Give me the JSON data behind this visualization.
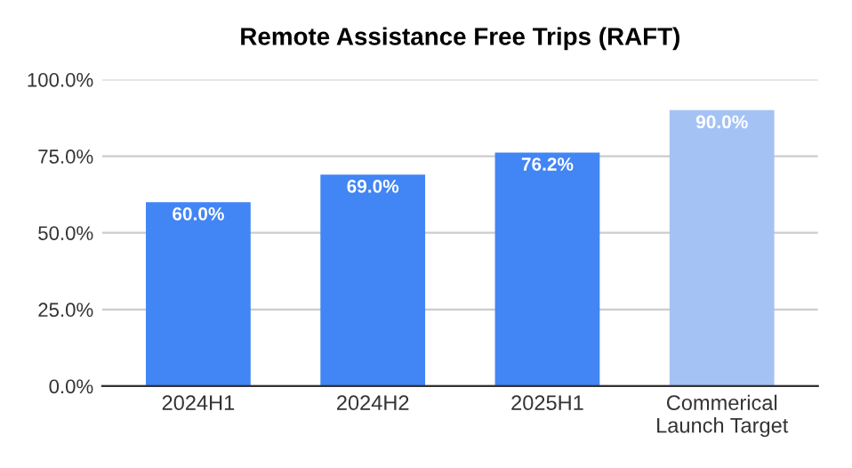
{
  "chart_data": {
    "type": "bar",
    "title": "Remote Assistance Free Trips (RAFT)",
    "categories": [
      "2024H1",
      "2024H2",
      "2025H1",
      "Commerical\nLaunch Target"
    ],
    "values": [
      60.0,
      69.0,
      76.2,
      90.0
    ],
    "colors": [
      "#4285f4",
      "#4285f4",
      "#4285f4",
      "#a4c2f4"
    ],
    "value_labels": [
      "60.0%",
      "69.0%",
      "76.2%",
      "90.0%"
    ],
    "ylim": [
      0,
      100
    ],
    "yticks": [
      {
        "value": 0,
        "label": "0.0%"
      },
      {
        "value": 25,
        "label": "25.0%"
      },
      {
        "value": 50,
        "label": "50.0%"
      },
      {
        "value": 75,
        "label": "75.0%"
      },
      {
        "value": 100,
        "label": "100.0%"
      }
    ],
    "grid": "y",
    "legend": false
  }
}
